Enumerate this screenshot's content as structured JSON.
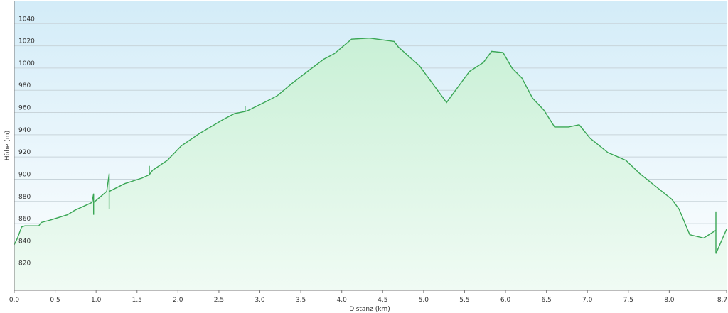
{
  "chart_data": {
    "type": "area",
    "title": "",
    "xlabel": "Distanz  (km)",
    "ylabel": "Höhe (m)",
    "xlim": [
      0,
      8.7
    ],
    "ylim": [
      800,
      1060
    ],
    "grid": true,
    "x_ticks": [
      "0.0",
      "0.5",
      "1.0",
      "1.5",
      "2.0",
      "2.5",
      "3.0",
      "3.5",
      "4.0",
      "4.5",
      "5.0",
      "5.5",
      "6.0",
      "6.5",
      "7.0",
      "7.5",
      "8.0",
      "8.7"
    ],
    "y_ticks": [
      "820",
      "840",
      "860",
      "880",
      "900",
      "920",
      "940",
      "960",
      "980",
      "1000",
      "1020",
      "1040"
    ],
    "colors": {
      "line": "#3aa655",
      "fill_top": "#c9f0d6",
      "fill_bottom": "#f0fbf4",
      "bg_top": "#d3ecf8",
      "bg_bottom": "#ffffff",
      "grid": "#c8d4da"
    },
    "series": [
      {
        "x": [
          0,
          0.04,
          0.09,
          0.13,
          0.3,
          0.33,
          0.43,
          0.65,
          0.74,
          0.95,
          0.97,
          0.97,
          0.97,
          1.13,
          1.16,
          1.16,
          1.16,
          1.35,
          1.56,
          1.65,
          1.65,
          1.65,
          1.69,
          1.87,
          2.04,
          2.26,
          2.56,
          2.69,
          2.82,
          2.82,
          2.82,
          2.86,
          3.08,
          3.21,
          3.39,
          3.6,
          3.78,
          3.91,
          4.12,
          4.34,
          4.64,
          4.69,
          4.95,
          5.16,
          5.28,
          5.43,
          5.56,
          5.73,
          5.83,
          5.97,
          6.08,
          6.2,
          6.33,
          6.47,
          6.6,
          6.77,
          6.9,
          7.03,
          7.25,
          7.47,
          7.64,
          7.86,
          8.03,
          8.12,
          8.25,
          8.42,
          8.57,
          8.57,
          8.57,
          8.7
        ],
        "y": [
          841,
          847,
          857,
          858,
          858,
          861,
          863,
          868,
          872,
          879,
          887,
          868,
          879,
          889,
          905,
          873,
          889,
          896,
          901,
          904,
          912,
          904,
          908,
          917,
          930,
          941,
          954,
          959,
          961,
          966,
          961,
          962,
          970,
          975,
          986,
          998,
          1008,
          1013,
          1026,
          1027,
          1024,
          1019,
          1002,
          981,
          969,
          984,
          997,
          1005,
          1015,
          1014,
          1000,
          991,
          973,
          962,
          947,
          947,
          949,
          937,
          924,
          917,
          905,
          892,
          882,
          873,
          850,
          847,
          854,
          871,
          833,
          855
        ]
      }
    ]
  }
}
